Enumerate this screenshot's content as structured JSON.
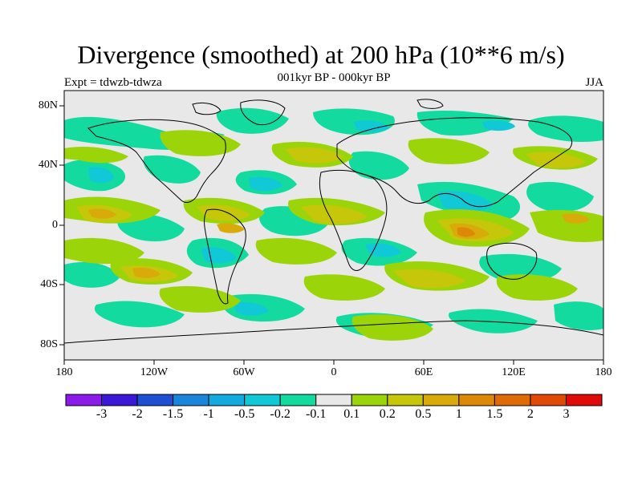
{
  "title": "Divergence (smoothed) at 200 hPa (10**6 m/s)",
  "subtitle": "001kyr BP - 000kyr BP",
  "experiment_label": "Expt = tdwzb-tdwza",
  "season_label": "JJA",
  "lat_ticks": [
    "80N",
    "40N",
    "0",
    "40S",
    "80S"
  ],
  "lon_ticks": [
    "180",
    "120W",
    "60W",
    "0",
    "60E",
    "120E",
    "180"
  ],
  "colorbar": {
    "colors": [
      "#8a1be8",
      "#3a18d6",
      "#1e4fd2",
      "#1a86db",
      "#13aadf",
      "#11c8d6",
      "#13dba0",
      "#e8e8e8",
      "#9cd40a",
      "#c6c60a",
      "#d8aa0a",
      "#de8808",
      "#e06a06",
      "#e04a06",
      "#e00a0a"
    ],
    "labels": [
      "-3",
      "-2",
      "-1.5",
      "-1",
      "-0.5",
      "-0.2",
      "-0.1",
      "0.1",
      "0.2",
      "0.5",
      "1",
      "1.5",
      "2",
      "3"
    ]
  }
}
